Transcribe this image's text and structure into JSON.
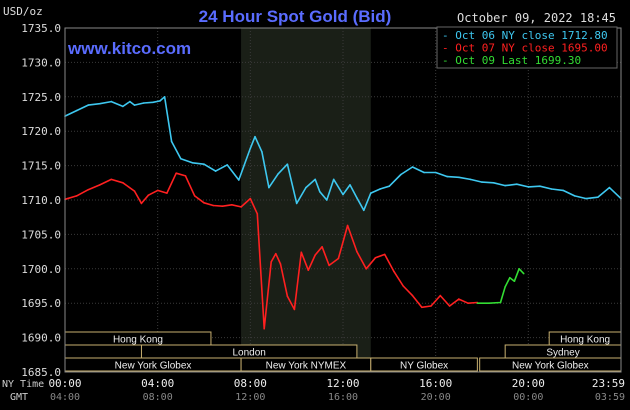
{
  "chart_data": {
    "type": "line",
    "title": "24 Hour Spot Gold (Bid)",
    "unit_label": "USD/oz",
    "date_label": "October 09, 2022 18:45",
    "watermark": "www.kitco.com",
    "ylim": [
      1685,
      1735
    ],
    "y_ticks": [
      "1735.0",
      "1730.0",
      "1725.0",
      "1720.0",
      "1715.0",
      "1710.0",
      "1705.0",
      "1700.0",
      "1695.0",
      "1690.0",
      "1685.0"
    ],
    "xlim": [
      0,
      24
    ],
    "x_ticks_ny": [
      "00:00",
      "04:00",
      "08:00",
      "12:00",
      "16:00",
      "20:00",
      "23:59"
    ],
    "x_ticks_gmt": [
      "04:00",
      "08:00",
      "12:00",
      "16:00",
      "20:00",
      "00:00",
      "03:59"
    ],
    "row_label_ny": "NY Time",
    "row_label_gmt": "GMT",
    "grid": true,
    "shaded_session_hours": [
      7.6,
      13.2
    ],
    "legend": [
      {
        "label": "Oct 06 NY close 1712.80",
        "color": "#3ec8f0"
      },
      {
        "label": "Oct 07 NY close 1695.00",
        "color": "#ff2020"
      },
      {
        "label": "Oct 09 Last 1699.30",
        "color": "#33dd33"
      }
    ],
    "series": [
      {
        "name": "Oct 06 NY close 1712.80",
        "color": "#3ec8f0",
        "x": [
          0,
          0.5,
          1,
          1.5,
          2,
          2.5,
          2.8,
          3,
          3.4,
          3.8,
          4.1,
          4.3,
          4.6,
          5,
          5.5,
          6,
          6.5,
          7,
          7.5,
          8,
          8.2,
          8.5,
          8.8,
          9.2,
          9.6,
          10,
          10.4,
          10.8,
          11,
          11.3,
          11.6,
          12,
          12.3,
          12.6,
          12.9,
          13.2,
          13.6,
          14,
          14.5,
          15,
          15.5,
          16,
          16.5,
          17,
          17.5,
          18,
          18.5,
          19,
          19.5,
          20,
          20.5,
          21,
          21.5,
          22,
          22.5,
          23,
          23.5,
          24
        ],
        "y": [
          1722.2,
          1723,
          1723.8,
          1724,
          1724.3,
          1723.6,
          1724.3,
          1723.8,
          1724.1,
          1724.2,
          1724.4,
          1725,
          1718.5,
          1716,
          1715.4,
          1715.2,
          1714.2,
          1715.1,
          1712.9,
          1717.5,
          1719.2,
          1717,
          1711.8,
          1713.8,
          1715.2,
          1709.5,
          1711.8,
          1713,
          1711.2,
          1710,
          1713,
          1710.8,
          1712.2,
          1710.3,
          1708.5,
          1711,
          1711.6,
          1712,
          1713.7,
          1714.8,
          1714,
          1714,
          1713.4,
          1713.3,
          1713,
          1712.6,
          1712.5,
          1712.1,
          1712.3,
          1711.9,
          1712,
          1711.6,
          1711.4,
          1710.6,
          1710.2,
          1710.4,
          1711.8,
          1710.2
        ]
      },
      {
        "name": "Oct 07 NY close 1695.00",
        "color": "#ff2020",
        "x": [
          0,
          0.5,
          1,
          1.5,
          2,
          2.5,
          3,
          3.3,
          3.6,
          4,
          4.4,
          4.8,
          5.2,
          5.6,
          6,
          6.4,
          6.8,
          7.2,
          7.6,
          8,
          8.3,
          8.6,
          8.9,
          9.1,
          9.3,
          9.6,
          9.9,
          10.2,
          10.5,
          10.8,
          11.1,
          11.4,
          11.8,
          12.2,
          12.6,
          13,
          13.4,
          13.8,
          14.2,
          14.6,
          15,
          15.4,
          15.8,
          16.2,
          16.6,
          17,
          17.4,
          17.8
        ],
        "y": [
          1710.1,
          1710.6,
          1711.5,
          1712.2,
          1713,
          1712.5,
          1711.3,
          1709.5,
          1710.7,
          1711.4,
          1711,
          1713.9,
          1713.5,
          1710.6,
          1709.6,
          1709.2,
          1709.1,
          1709.3,
          1709,
          1710.2,
          1708,
          1691.3,
          1701,
          1702.2,
          1700.7,
          1696,
          1694.1,
          1702.4,
          1699.8,
          1702,
          1703.2,
          1700.5,
          1701.5,
          1706.3,
          1702.5,
          1700,
          1701.6,
          1702.1,
          1699.6,
          1697.5,
          1696.1,
          1694.4,
          1694.6,
          1696.1,
          1694.6,
          1695.6,
          1695,
          1695.1
        ]
      },
      {
        "name": "Oct 09 Last 1699.30",
        "color": "#33dd33",
        "x": [
          17.8,
          18.3,
          18.8,
          19,
          19.2,
          19.4,
          19.6,
          19.8
        ],
        "y": [
          1695,
          1695,
          1695.1,
          1697.4,
          1698.7,
          1698.2,
          1700,
          1699.3
        ]
      }
    ],
    "sessions": [
      {
        "name": "Hong Kong",
        "start": 0,
        "end": 6.3,
        "row": 0
      },
      {
        "name": "London",
        "start": 3.3,
        "end": 12.6,
        "row": 1
      },
      {
        "name": "New York Globex",
        "start": 0,
        "end": 7.6,
        "row": 2
      },
      {
        "name": "New York NYMEX",
        "start": 7.6,
        "end": 13.2,
        "row": 2
      },
      {
        "name": "NY Globex",
        "start": 13.2,
        "end": 17.8,
        "row": 2
      },
      {
        "name": "Hong Kong",
        "start": 20.9,
        "end": 24,
        "row": 0
      },
      {
        "name": "Sydney",
        "start": 19,
        "end": 24,
        "row": 1
      },
      {
        "name": "New York Globex",
        "start": 17.9,
        "end": 24,
        "row": 2
      }
    ]
  }
}
